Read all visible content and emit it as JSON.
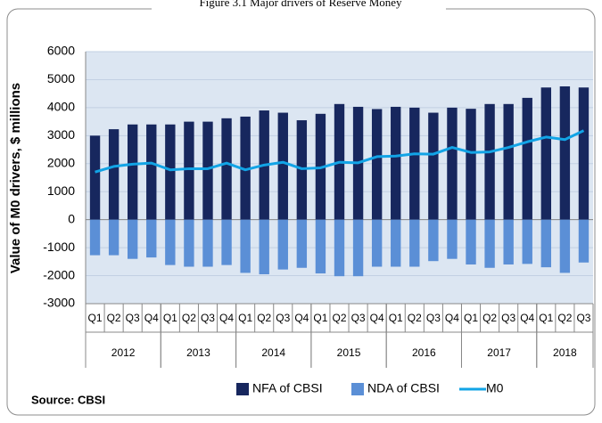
{
  "chart_data": {
    "type": "bar_line",
    "title": "Figure 3.1 Major drivers of Reserve Money",
    "y_label": "Value of M0 drivers, $ millions",
    "source": "Source: CBSI",
    "categories": [
      "Q1",
      "Q2",
      "Q3",
      "Q4",
      "Q1",
      "Q2",
      "Q3",
      "Q4",
      "Q1",
      "Q2",
      "Q3",
      "Q4",
      "Q1",
      "Q2",
      "Q3",
      "Q4",
      "Q1",
      "Q2",
      "Q3",
      "Q4",
      "Q1",
      "Q2",
      "Q3",
      "Q4",
      "Q1",
      "Q2",
      "Q3"
    ],
    "category_groups": [
      {
        "label": "2012",
        "span": 4
      },
      {
        "label": "2013",
        "span": 4
      },
      {
        "label": "2014",
        "span": 4
      },
      {
        "label": "2015",
        "span": 4
      },
      {
        "label": "2016",
        "span": 4
      },
      {
        "label": "2017",
        "span": 4
      },
      {
        "label": "2018",
        "span": 3
      }
    ],
    "series": [
      {
        "name": "NFA of CBSI",
        "color": "#17275e",
        "kind": "bar",
        "values": [
          3000,
          3230,
          3400,
          3400,
          3400,
          3500,
          3500,
          3620,
          3680,
          3900,
          3820,
          3550,
          3780,
          4130,
          4030,
          3950,
          4030,
          4000,
          3820,
          4000,
          3960,
          4130,
          4130,
          4350,
          4720,
          4760,
          4720
        ]
      },
      {
        "name": "NDA of CBSI",
        "color": "#5b8fd6",
        "kind": "bar",
        "values": [
          -1270,
          -1270,
          -1400,
          -1350,
          -1620,
          -1680,
          -1680,
          -1620,
          -1900,
          -1950,
          -1780,
          -1720,
          -1920,
          -2020,
          -2020,
          -1680,
          -1680,
          -1680,
          -1480,
          -1400,
          -1600,
          -1720,
          -1600,
          -1580,
          -1700,
          -1900,
          -1530
        ]
      },
      {
        "name": "M0",
        "color": "#12a4e6",
        "kind": "line",
        "values": [
          1700,
          1900,
          1980,
          2020,
          1780,
          1820,
          1820,
          2020,
          1780,
          1950,
          2050,
          1820,
          1850,
          2050,
          2030,
          2250,
          2270,
          2350,
          2340,
          2580,
          2400,
          2420,
          2580,
          2780,
          2950,
          2860,
          3180
        ]
      }
    ],
    "ylim": [
      -3000,
      6000
    ],
    "yticks": [
      -3000,
      -2000,
      -1000,
      0,
      1000,
      2000,
      3000,
      4000,
      5000,
      6000
    ],
    "grid": true
  }
}
